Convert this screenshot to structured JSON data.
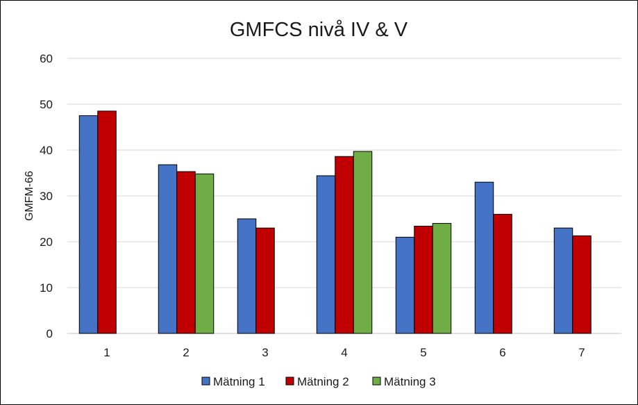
{
  "chart_data": {
    "type": "bar",
    "title": "GMFCS nivå IV & V",
    "xlabel": "",
    "ylabel": "GMFM-66",
    "ylim": [
      0,
      60
    ],
    "yticks": [
      0,
      10,
      20,
      30,
      40,
      50,
      60
    ],
    "grid": true,
    "legend_position": "bottom",
    "categories": [
      "1",
      "2",
      "3",
      "4",
      "5",
      "6",
      "7"
    ],
    "series": [
      {
        "name": "Mätning 1",
        "color": "#4472C4",
        "values": [
          47.5,
          36.8,
          25.0,
          34.4,
          21.0,
          33.0,
          23.0
        ]
      },
      {
        "name": "Mätning 2",
        "color": "#C00000",
        "values": [
          48.5,
          35.3,
          23.0,
          38.6,
          23.4,
          26.0,
          21.3
        ]
      },
      {
        "name": "Mätning 3",
        "color": "#70AD47",
        "values": [
          null,
          34.8,
          null,
          39.7,
          24.0,
          null,
          null
        ]
      }
    ]
  }
}
